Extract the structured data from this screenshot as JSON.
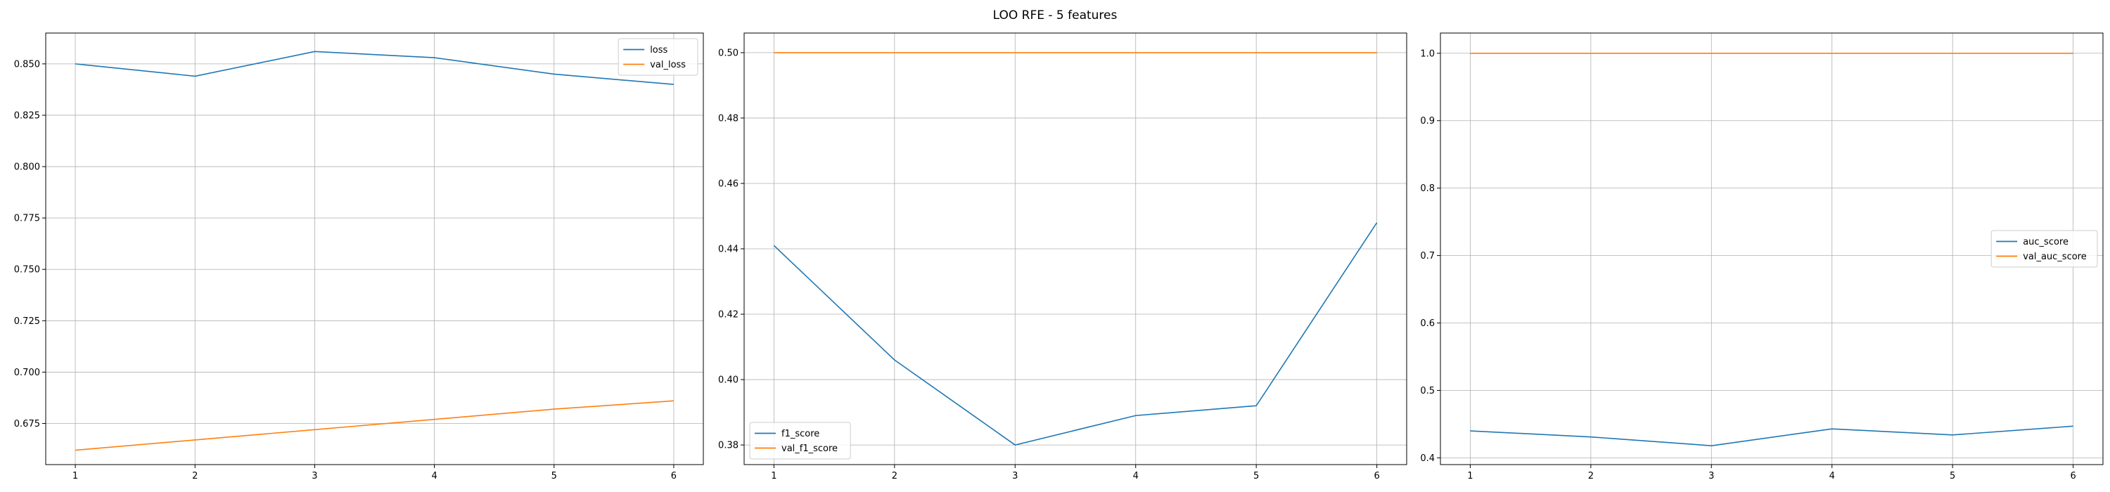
{
  "figure": {
    "title": "LOO RFE - 5 features"
  },
  "chart_data": [
    {
      "type": "line",
      "x": [
        1,
        2,
        3,
        4,
        5,
        6
      ],
      "xticks": [
        "1",
        "2",
        "3",
        "4",
        "5",
        "6"
      ],
      "ylim": [
        0.655,
        0.865
      ],
      "yticks": [
        "0.675",
        "0.700",
        "0.725",
        "0.750",
        "0.775",
        "0.800",
        "0.825",
        "0.850"
      ],
      "ytick_values": [
        0.675,
        0.7,
        0.725,
        0.75,
        0.775,
        0.8,
        0.825,
        0.85
      ],
      "grid": true,
      "legend_position": "upper-right",
      "series": [
        {
          "name": "loss",
          "color": "#1f77b4",
          "values": [
            0.85,
            0.844,
            0.856,
            0.853,
            0.845,
            0.84
          ]
        },
        {
          "name": "val_loss",
          "color": "#ff7f0e",
          "values": [
            0.662,
            0.667,
            0.672,
            0.677,
            0.682,
            0.686
          ]
        }
      ]
    },
    {
      "type": "line",
      "x": [
        1,
        2,
        3,
        4,
        5,
        6
      ],
      "xticks": [
        "1",
        "2",
        "3",
        "4",
        "5",
        "6"
      ],
      "ylim": [
        0.374,
        0.506
      ],
      "yticks": [
        "0.38",
        "0.40",
        "0.42",
        "0.44",
        "0.46",
        "0.48",
        "0.50"
      ],
      "ytick_values": [
        0.38,
        0.4,
        0.42,
        0.44,
        0.46,
        0.48,
        0.5
      ],
      "grid": true,
      "legend_position": "lower-left",
      "series": [
        {
          "name": "f1_score",
          "color": "#1f77b4",
          "values": [
            0.441,
            0.406,
            0.38,
            0.389,
            0.392,
            0.448
          ]
        },
        {
          "name": "val_f1_score",
          "color": "#ff7f0e",
          "values": [
            0.5,
            0.5,
            0.5,
            0.5,
            0.5,
            0.5
          ]
        }
      ]
    },
    {
      "type": "line",
      "x": [
        1,
        2,
        3,
        4,
        5,
        6
      ],
      "xticks": [
        "1",
        "2",
        "3",
        "4",
        "5",
        "6"
      ],
      "ylim": [
        0.39,
        1.03
      ],
      "yticks": [
        "0.4",
        "0.5",
        "0.6",
        "0.7",
        "0.8",
        "0.9",
        "1.0"
      ],
      "ytick_values": [
        0.4,
        0.5,
        0.6,
        0.7,
        0.8,
        0.9,
        1.0
      ],
      "grid": true,
      "legend_position": "center-right",
      "series": [
        {
          "name": "auc_score",
          "color": "#1f77b4",
          "values": [
            0.44,
            0.431,
            0.418,
            0.443,
            0.434,
            0.447
          ]
        },
        {
          "name": "val_auc_score",
          "color": "#ff7f0e",
          "values": [
            1.0,
            1.0,
            1.0,
            1.0,
            1.0,
            1.0
          ]
        }
      ]
    }
  ]
}
